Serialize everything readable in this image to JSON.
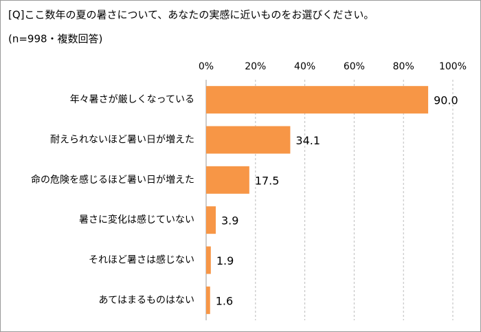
{
  "chart_data": {
    "type": "bar",
    "orientation": "horizontal",
    "title": "[Q]ここ数年の夏の暑さについて、あなたの実感に近いものをお選びください。",
    "subtitle": "(n=998・複数回答)",
    "categories": [
      "年々暑さが厳しくなっている",
      "耐えられないほど暑い日が増えた",
      "命の危険を感じるほど暑い日が増えた",
      "暑さに変化は感じていない",
      "それほど暑さは感じない",
      "あてはまるものはない"
    ],
    "values": [
      90.0,
      34.1,
      17.5,
      3.9,
      1.9,
      1.6
    ],
    "value_labels": [
      "90.0",
      "34.1",
      "17.5",
      "3.9",
      "1.9",
      "1.6"
    ],
    "color": "#f79646",
    "xlim": [
      0,
      100
    ],
    "xticks": [
      {
        "value": 0,
        "label": "0%"
      },
      {
        "value": 20,
        "label": "20%"
      },
      {
        "value": 40,
        "label": "40%"
      },
      {
        "value": 60,
        "label": "60%"
      },
      {
        "value": 80,
        "label": "80%"
      },
      {
        "value": 100,
        "label": "100%"
      }
    ],
    "grid": true
  }
}
